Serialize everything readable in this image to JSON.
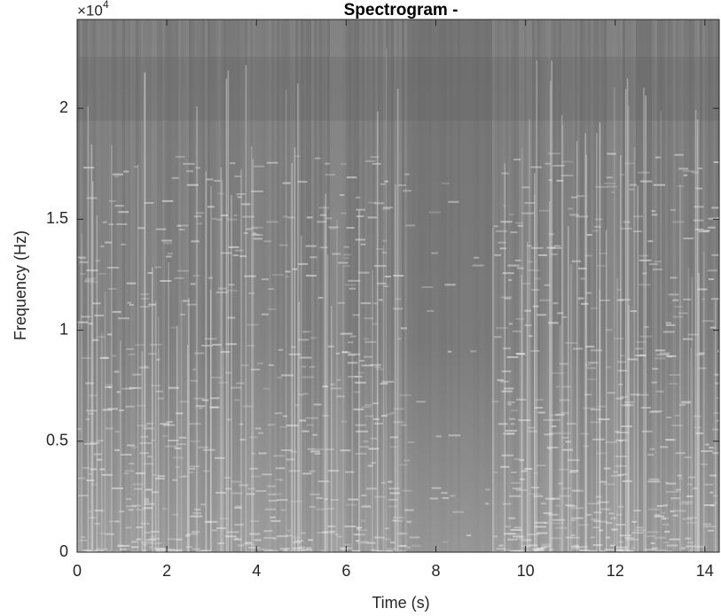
{
  "chart_data": {
    "type": "spectrogram",
    "title": "Spectrogram -",
    "x_label": "Time (s)",
    "y_label": "Frequency (Hz)",
    "y_multiplier": "×10",
    "y_exponent": "4",
    "xlim": [
      0,
      14.32
    ],
    "xticks": [
      0,
      2,
      4,
      6,
      8,
      10,
      12,
      14
    ],
    "ylim": [
      0,
      24000
    ],
    "yticks": [
      {
        "value": 0,
        "label": "0"
      },
      {
        "value": 5000,
        "label": "0.5"
      },
      {
        "value": 10000,
        "label": "1"
      },
      {
        "value": 15000,
        "label": "1.5"
      },
      {
        "value": 20000,
        "label": "2"
      }
    ],
    "colormap": "gray"
  }
}
